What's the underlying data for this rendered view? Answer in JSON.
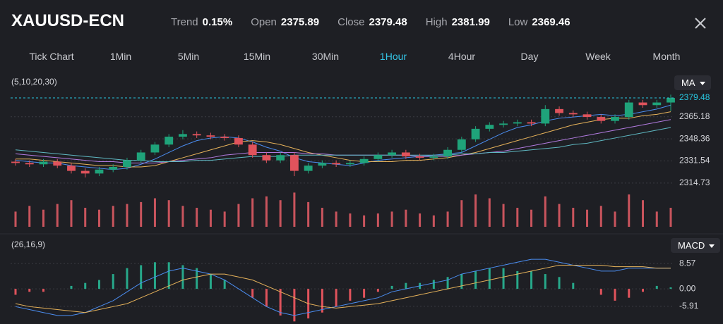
{
  "header": {
    "symbol": "XAUUSD-ECN",
    "stats": [
      {
        "label": "Trend",
        "value": "0.15%"
      },
      {
        "label": "Open",
        "value": "2375.89"
      },
      {
        "label": "Close",
        "value": "2379.48"
      },
      {
        "label": "High",
        "value": "2381.99"
      },
      {
        "label": "Low",
        "value": "2369.46"
      }
    ]
  },
  "tabs": [
    "Tick Chart",
    "1Min",
    "5Min",
    "15Min",
    "30Min",
    "1Hour",
    "4Hour",
    "Day",
    "Week",
    "Month"
  ],
  "active_tab": 5,
  "indicators": {
    "main_params": "(5,10,20,30)",
    "main_button": "MA",
    "sub_params": "(26,16,9)",
    "sub_button": "MACD"
  },
  "chart_data": [
    {
      "type": "candlestick",
      "up_color": "#1fa37a",
      "down_color": "#e0535c",
      "ylim": [
        2312,
        2387
      ],
      "yticks": [
        2314.73,
        2331.54,
        2348.36,
        2365.18
      ],
      "grid": true,
      "last_color": "#28c7e0",
      "open": [
        2331,
        2330,
        2329,
        2331,
        2328,
        2324,
        2322,
        2325,
        2327,
        2332,
        2338,
        2344,
        2350,
        2352,
        2351,
        2350,
        2349,
        2344,
        2336,
        2332,
        2336,
        2324,
        2328,
        2330,
        2329,
        2330,
        2333,
        2336,
        2338,
        2335,
        2334,
        2335,
        2340,
        2348,
        2356,
        2359,
        2360,
        2361,
        2360,
        2371,
        2368,
        2367,
        2365,
        2362,
        2365,
        2376,
        2374,
        2376
      ],
      "high": [
        2333,
        2332,
        2333,
        2333,
        2330,
        2326,
        2327,
        2329,
        2334,
        2340,
        2346,
        2352,
        2355,
        2354,
        2353,
        2352,
        2351,
        2346,
        2338,
        2338,
        2338,
        2330,
        2332,
        2332,
        2332,
        2335,
        2338,
        2340,
        2340,
        2337,
        2337,
        2342,
        2350,
        2358,
        2361,
        2362,
        2363,
        2363,
        2374,
        2373,
        2370,
        2369,
        2367,
        2367,
        2378,
        2378,
        2378,
        2381.99
      ],
      "low": [
        2328,
        2327,
        2327,
        2326,
        2322,
        2319,
        2320,
        2323,
        2325,
        2330,
        2336,
        2342,
        2348,
        2349,
        2348,
        2347,
        2342,
        2334,
        2330,
        2330,
        2320,
        2322,
        2326,
        2327,
        2327,
        2328,
        2331,
        2334,
        2333,
        2332,
        2332,
        2333,
        2338,
        2346,
        2354,
        2357,
        2358,
        2358,
        2358,
        2366,
        2365,
        2363,
        2360,
        2360,
        2363,
        2372,
        2372,
        2369.46
      ],
      "close": [
        2330,
        2329,
        2331,
        2328,
        2324,
        2322,
        2325,
        2327,
        2332,
        2338,
        2344,
        2350,
        2352,
        2351,
        2350,
        2349,
        2344,
        2336,
        2332,
        2336,
        2324,
        2328,
        2330,
        2329,
        2330,
        2333,
        2336,
        2338,
        2335,
        2334,
        2335,
        2340,
        2348,
        2356,
        2359,
        2360,
        2361,
        2360,
        2371,
        2368,
        2367,
        2365,
        2362,
        2365,
        2376,
        2374,
        2376,
        2379.48
      ],
      "series": [
        {
          "color": "#4b8df0",
          "values": [
            2332,
            2331,
            2330,
            2330,
            2328,
            2327,
            2326,
            2325,
            2326,
            2329,
            2333,
            2338,
            2343,
            2347,
            2349,
            2350,
            2349,
            2346,
            2342,
            2339,
            2334,
            2331,
            2330,
            2329,
            2328,
            2330,
            2332,
            2333,
            2334,
            2335,
            2336,
            2337,
            2338,
            2343,
            2348,
            2353,
            2357,
            2359,
            2362,
            2364,
            2365,
            2366,
            2367,
            2366,
            2367,
            2369,
            2371,
            2374
          ]
        },
        {
          "color": "#e6b25a",
          "values": [
            2333,
            2333,
            2332,
            2331,
            2330,
            2329,
            2328,
            2328,
            2327,
            2327,
            2328,
            2331,
            2334,
            2337,
            2340,
            2343,
            2346,
            2347,
            2346,
            2344,
            2341,
            2338,
            2336,
            2334,
            2332,
            2331,
            2331,
            2331,
            2332,
            2332,
            2333,
            2334,
            2336,
            2338,
            2341,
            2344,
            2347,
            2350,
            2353,
            2356,
            2359,
            2361,
            2363,
            2364,
            2364,
            2366,
            2367,
            2369
          ]
        },
        {
          "color": "#b27be0",
          "values": [
            2337,
            2336,
            2335,
            2334,
            2333,
            2332,
            2331,
            2331,
            2330,
            2330,
            2330,
            2331,
            2332,
            2333,
            2334,
            2336,
            2337,
            2338,
            2338,
            2338,
            2338,
            2337,
            2337,
            2336,
            2336,
            2336,
            2336,
            2336,
            2336,
            2335,
            2335,
            2335,
            2336,
            2337,
            2338,
            2339,
            2341,
            2343,
            2345,
            2347,
            2349,
            2351,
            2353,
            2355,
            2357,
            2359,
            2361,
            2363
          ]
        },
        {
          "color": "#5fb8c2",
          "values": [
            2340,
            2339,
            2338,
            2337,
            2336,
            2335,
            2334,
            2333,
            2332,
            2332,
            2331,
            2331,
            2331,
            2332,
            2332,
            2333,
            2334,
            2335,
            2335,
            2335,
            2336,
            2336,
            2336,
            2336,
            2336,
            2336,
            2336,
            2336,
            2336,
            2336,
            2336,
            2336,
            2337,
            2337,
            2338,
            2338,
            2339,
            2340,
            2341,
            2342,
            2344,
            2345,
            2347,
            2349,
            2351,
            2353,
            2355,
            2357
          ]
        }
      ]
    },
    {
      "type": "bar",
      "color": "#c9545d",
      "ylim": [
        0,
        100
      ],
      "values": [
        40,
        55,
        45,
        60,
        70,
        50,
        45,
        55,
        60,
        65,
        75,
        70,
        55,
        50,
        45,
        40,
        60,
        75,
        80,
        70,
        90,
        65,
        50,
        40,
        35,
        30,
        35,
        40,
        45,
        35,
        30,
        40,
        70,
        85,
        75,
        60,
        50,
        45,
        80,
        60,
        50,
        45,
        55,
        40,
        85,
        70,
        40,
        50
      ]
    },
    {
      "type": "macd",
      "up_color": "#27a88a",
      "down_color": "#e0535c",
      "ylim": [
        -11.4,
        12.4
      ],
      "yticks": [
        8.57,
        {
          "value": 0,
          "label": "0.00"
        },
        -5.91
      ],
      "grid": true,
      "values": [
        -2,
        -1,
        -1,
        0,
        1,
        2,
        3,
        5,
        7,
        8,
        9,
        9,
        8,
        7,
        5,
        3,
        0,
        -3,
        -6,
        -9,
        -11,
        -10,
        -8,
        -6,
        -4,
        -3,
        -1,
        1,
        2,
        2,
        3,
        4,
        5,
        6,
        7,
        7,
        6,
        6,
        5,
        4,
        2,
        0,
        -2,
        -4,
        -3,
        -1,
        1,
        0.5
      ],
      "series": [
        {
          "color": "#4b8df0",
          "values": [
            -6,
            -7,
            -8,
            -9,
            -9,
            -8,
            -6,
            -4,
            -1,
            2,
            4,
            6,
            7,
            6,
            5,
            3,
            0,
            -3,
            -6,
            -8,
            -9,
            -8,
            -7,
            -6,
            -5,
            -4,
            -3,
            -1,
            0,
            1,
            2,
            3,
            5,
            6,
            7,
            8,
            9,
            10,
            10,
            9,
            8,
            7,
            6,
            6,
            7,
            7,
            7,
            7
          ]
        },
        {
          "color": "#e6b25a",
          "values": [
            -5,
            -6,
            -6.5,
            -7,
            -7.5,
            -8,
            -7,
            -6,
            -5,
            -3,
            -1,
            1,
            3,
            4,
            5,
            5,
            4,
            3,
            1,
            -1,
            -3,
            -5,
            -6,
            -6.5,
            -6,
            -5.5,
            -5,
            -4,
            -3,
            -2,
            -1,
            0,
            1,
            2,
            3,
            4,
            5,
            6,
            7,
            8,
            8,
            8,
            8,
            7.5,
            7.5,
            7.5,
            7,
            7
          ]
        }
      ]
    }
  ]
}
